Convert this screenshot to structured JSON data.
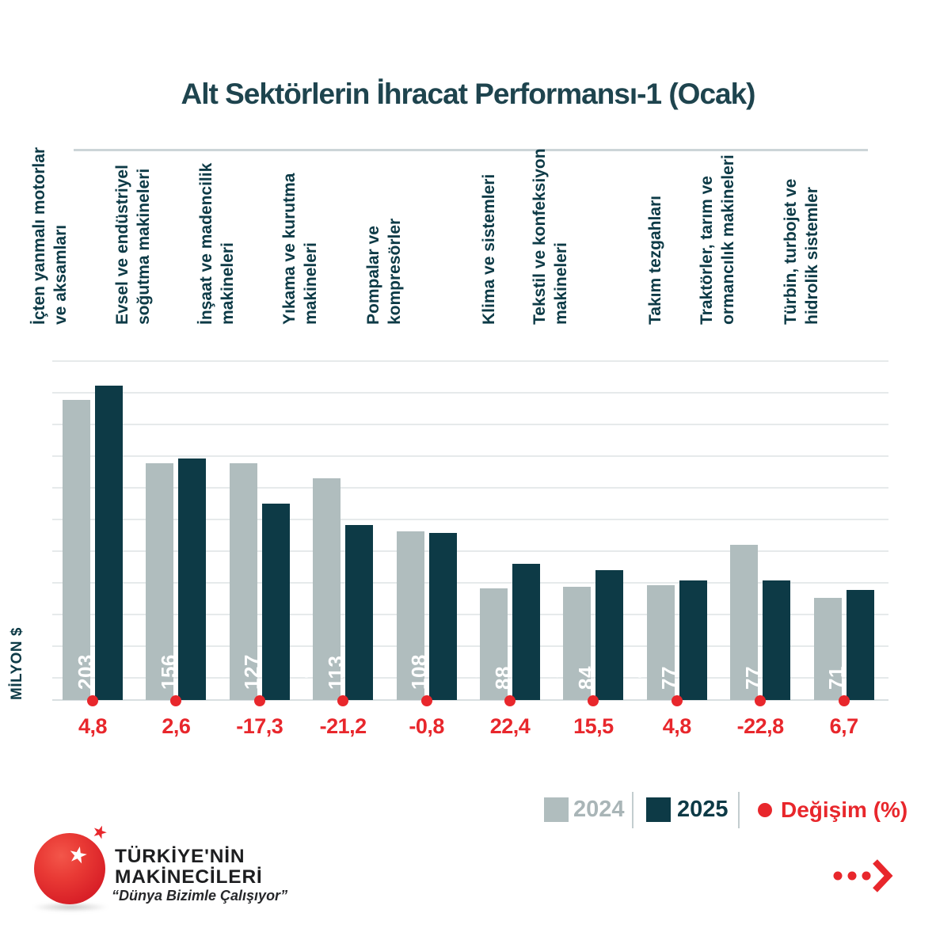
{
  "header": {
    "title": "Alt Sektörlerin İhracat Performansı-1 (Ocak)"
  },
  "chart_data": {
    "type": "bar",
    "title": "Alt Sektörlerin İhracat Performansı-1 (Ocak)",
    "ylabel": "MİLYON $",
    "ylim": [
      0,
      220
    ],
    "grid": "horizontal",
    "legend_position": "bottom-right",
    "value_labels": "inside-bar-rotated",
    "categories": [
      "İçten yanmalı motorlar ve aksamları",
      "Evsel ve endüstriyel soğutma makineleri",
      "İnşaat ve madencilik makineleri",
      "Yıkama ve kurutma makineleri",
      "Pompalar ve kompresörler",
      "Klima ve sistemleri",
      "Tekstil ve konfeksiyon makineleri",
      "Takım tezgahları",
      "Traktörler, tarım ve ormancılık makineleri",
      "Türbin, turbojet ve hidrolik sistemler"
    ],
    "category_lines": [
      [
        "İçten yanmalı motorlar",
        "ve aksamları"
      ],
      [
        "Evsel ve endüstriyel",
        "soğutma makineleri"
      ],
      [
        "İnşaat ve madencilik",
        "makineleri"
      ],
      [
        "Yıkama ve kurutma",
        "makineleri"
      ],
      [
        "Pompalar ve",
        "kompresörler"
      ],
      [
        "Klima ve sistemleri"
      ],
      [
        "Tekstil ve konfeksiyon",
        "makineleri"
      ],
      [
        "Takım tezgahları"
      ],
      [
        "Traktörler, tarım ve",
        "ormancılık makineleri"
      ],
      [
        "Türbin, turbojet ve",
        "hidrolik sistemler"
      ]
    ],
    "series": [
      {
        "name": "2024",
        "color": "#b0bdbe",
        "values": [
          194,
          153,
          153,
          143,
          109,
          72,
          73,
          74,
          100,
          66
        ]
      },
      {
        "name": "2025",
        "color": "#0d3a46",
        "values": [
          203,
          156,
          127,
          113,
          108,
          88,
          84,
          77,
          77,
          71
        ]
      }
    ],
    "change": {
      "name": "Değişim (%)",
      "color": "#e8272c",
      "values": [
        4.8,
        2.6,
        -17.3,
        -21.2,
        -0.8,
        22.4,
        15.5,
        4.8,
        -22.8,
        6.7
      ],
      "labels": [
        "4,8",
        "2,6",
        "-17,3",
        "-21,2",
        "-0,8",
        "22,4",
        "15,5",
        "4,8",
        "-22,8",
        "6,7"
      ]
    }
  },
  "legend": {
    "items": [
      {
        "label": "2024",
        "swatch": "square",
        "color": "#b0bdbe",
        "text_color": "#a9b5b7"
      },
      {
        "label": "2025",
        "swatch": "square",
        "color": "#0d3a46",
        "text_color": "#0d3a46"
      },
      {
        "label": "Değişim (%)",
        "swatch": "circle",
        "color": "#e8272c",
        "text_color": "#e8272c"
      }
    ]
  },
  "footer": {
    "brand_line1": "TÜRKİYE'NİN",
    "brand_line2": "MAKİNECİLERİ",
    "tagline": "“Dünya Bizimle Çalışıyor”"
  },
  "colors": {
    "title": "#1e444e",
    "dark_teal": "#0d3a46",
    "bar_gray": "#b0bdbe",
    "accent_red": "#e8272c",
    "gridline": "#e6eaeb",
    "divider": "#ccd5d8",
    "bar_value_text": "#ffffff"
  }
}
